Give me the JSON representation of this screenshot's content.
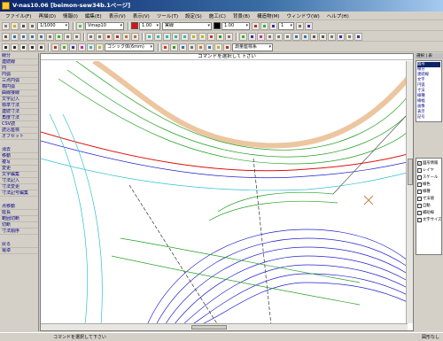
{
  "window": {
    "title": "V-nas10.06 [beimon-sew34b.1ページ]"
  },
  "menu": [
    "ファイル(F)",
    "再描(D)",
    "情報(I)",
    "編集(E)",
    "表示(V)",
    "表示(V)",
    "ツール(T)",
    "設定(S)",
    "施工(C)",
    "背景(B)",
    "構造物(M)",
    "ウィンドウ(W)",
    "ヘルプ(H)"
  ],
  "toolbar": {
    "scale": "1/1000",
    "layer": "Vmap10",
    "line_type": "実線",
    "pen_width": "1.00",
    "value_box": "1",
    "font": "ゴシック体(6mm)",
    "style_label": "測量座標系"
  },
  "canvas": {
    "prompt": "コマンドを選択して下さい"
  },
  "left_panel": {
    "groups": [
      [
        "線分",
        "連続線",
        "円",
        "円弧",
        "三点円弧",
        "楕円弧",
        "曲線接線",
        "文字記入",
        "標準寸法",
        "連続寸法",
        "角度寸法",
        "CSV読",
        "読込座標",
        "オフセット"
      ],
      [
        "消去",
        "移動",
        "複写",
        "変更",
        "文字編集",
        "寸法記入",
        "寸法変更",
        "寸法記号編集"
      ],
      [
        "点移動",
        "延長",
        "範囲切断",
        "切断",
        "寸法順序"
      ],
      [
        "戻る",
        "電卓"
      ]
    ]
  },
  "right_panel": {
    "header": "選択 | 表",
    "tree": [
      "図形",
      "線分",
      "連続線",
      "文字",
      "円弧",
      "寸法",
      "線種",
      "線幅",
      "画像",
      "表示",
      "記号"
    ],
    "checks": [
      {
        "label": "図形情報",
        "checked": true
      },
      {
        "label": "レイヤ",
        "checked": false
      },
      {
        "label": "スケール",
        "checked": false
      },
      {
        "label": "線色",
        "checked": false
      },
      {
        "label": "線種",
        "checked": false
      },
      {
        "label": "寸法値",
        "checked": false
      },
      {
        "label": "自動",
        "checked": false
      },
      {
        "label": "補助線",
        "checked": false
      },
      {
        "label": "文字サイズ",
        "checked": false
      }
    ]
  },
  "status": {
    "message": "コマンドを選択して下さい",
    "right": "図形なし"
  },
  "colors": {
    "titlebar": "#0a246a",
    "green_contours": "#22a022",
    "blue_contours": "#2222cc",
    "red_line": "#e01010",
    "orange_band": "#e0a060",
    "cyan_lines": "#30c0d0"
  }
}
